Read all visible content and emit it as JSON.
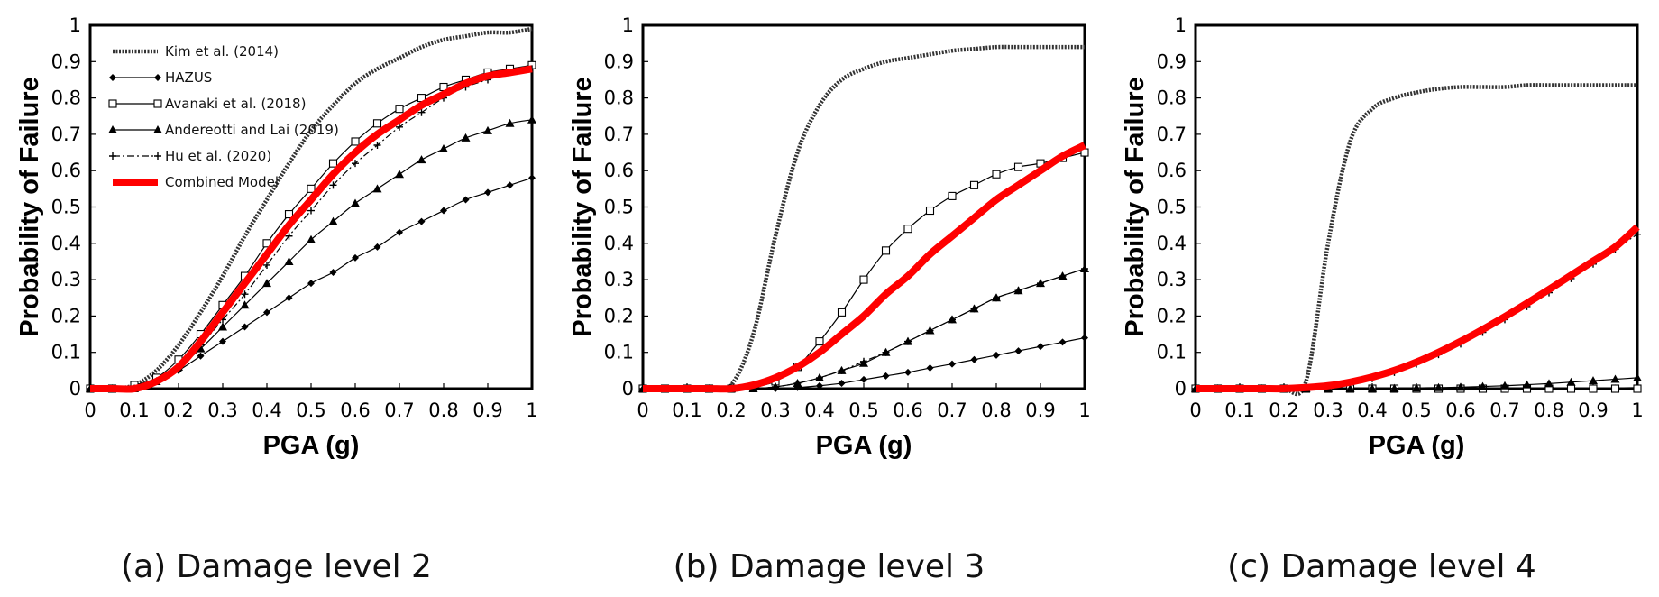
{
  "chart_data": [
    {
      "type": "line",
      "caption": "(a) Damage level 2",
      "xlabel": "PGA (g)",
      "ylabel": "Probability of Failure",
      "xlim": [
        0,
        1
      ],
      "ylim": [
        0,
        1
      ],
      "x_ticks": [
        "0",
        "0.1",
        "0.2",
        "0.3",
        "0.4",
        "0.5",
        "0.6",
        "0.7",
        "0.8",
        "0.9",
        "1"
      ],
      "y_ticks": [
        "0",
        "0.1",
        "0.2",
        "0.3",
        "0.4",
        "0.5",
        "0.6",
        "0.7",
        "0.8",
        "0.9",
        "1"
      ],
      "legend": "top-left",
      "grid": false,
      "series": [
        {
          "name": "Kim et al. (2014)",
          "x": [
            0,
            0.05,
            0.1,
            0.15,
            0.2,
            0.25,
            0.3,
            0.35,
            0.4,
            0.45,
            0.5,
            0.55,
            0.6,
            0.65,
            0.7,
            0.75,
            0.8,
            0.85,
            0.9,
            0.95,
            1.0
          ],
          "y": [
            0,
            0,
            0.01,
            0.05,
            0.12,
            0.21,
            0.31,
            0.42,
            0.52,
            0.62,
            0.71,
            0.78,
            0.84,
            0.88,
            0.91,
            0.94,
            0.96,
            0.97,
            0.98,
            0.98,
            0.99
          ]
        },
        {
          "name": "HAZUS",
          "x": [
            0,
            0.05,
            0.1,
            0.15,
            0.2,
            0.25,
            0.3,
            0.35,
            0.4,
            0.45,
            0.5,
            0.55,
            0.6,
            0.65,
            0.7,
            0.75,
            0.8,
            0.85,
            0.9,
            0.95,
            1.0
          ],
          "y": [
            0,
            0,
            0,
            0.02,
            0.05,
            0.09,
            0.13,
            0.17,
            0.21,
            0.25,
            0.29,
            0.32,
            0.36,
            0.39,
            0.43,
            0.46,
            0.49,
            0.52,
            0.54,
            0.56,
            0.58
          ]
        },
        {
          "name": "Avanaki et al. (2018)",
          "x": [
            0,
            0.05,
            0.1,
            0.15,
            0.2,
            0.25,
            0.3,
            0.35,
            0.4,
            0.45,
            0.5,
            0.55,
            0.6,
            0.65,
            0.7,
            0.75,
            0.8,
            0.85,
            0.9,
            0.95,
            1.0
          ],
          "y": [
            0,
            0,
            0.01,
            0.03,
            0.08,
            0.15,
            0.23,
            0.31,
            0.4,
            0.48,
            0.55,
            0.62,
            0.68,
            0.73,
            0.77,
            0.8,
            0.83,
            0.85,
            0.87,
            0.88,
            0.89
          ]
        },
        {
          "name": "Andereotti and Lai (2019)",
          "x": [
            0,
            0.05,
            0.1,
            0.15,
            0.2,
            0.25,
            0.3,
            0.35,
            0.4,
            0.45,
            0.5,
            0.55,
            0.6,
            0.65,
            0.7,
            0.75,
            0.8,
            0.85,
            0.9,
            0.95,
            1.0
          ],
          "y": [
            0,
            0,
            0,
            0.02,
            0.06,
            0.11,
            0.17,
            0.23,
            0.29,
            0.35,
            0.41,
            0.46,
            0.51,
            0.55,
            0.59,
            0.63,
            0.66,
            0.69,
            0.71,
            0.73,
            0.74
          ]
        },
        {
          "name": "Hu et al. (2020)",
          "x": [
            0,
            0.05,
            0.1,
            0.15,
            0.2,
            0.25,
            0.3,
            0.35,
            0.4,
            0.45,
            0.5,
            0.55,
            0.6,
            0.65,
            0.7,
            0.75,
            0.8,
            0.85,
            0.9,
            0.95,
            1.0
          ],
          "y": [
            0,
            0,
            0,
            0.02,
            0.06,
            0.12,
            0.19,
            0.26,
            0.34,
            0.42,
            0.49,
            0.56,
            0.62,
            0.67,
            0.72,
            0.76,
            0.8,
            0.83,
            0.85,
            0.87,
            0.88
          ]
        },
        {
          "name": "Combined Model",
          "x": [
            0,
            0.05,
            0.1,
            0.15,
            0.2,
            0.25,
            0.3,
            0.35,
            0.4,
            0.45,
            0.5,
            0.55,
            0.6,
            0.65,
            0.7,
            0.75,
            0.8,
            0.85,
            0.9,
            0.95,
            1.0
          ],
          "y": [
            0,
            0,
            0,
            0.02,
            0.06,
            0.13,
            0.21,
            0.29,
            0.37,
            0.45,
            0.52,
            0.59,
            0.65,
            0.7,
            0.74,
            0.78,
            0.81,
            0.84,
            0.86,
            0.87,
            0.88
          ]
        }
      ]
    },
    {
      "type": "line",
      "caption": "(b) Damage level 3",
      "xlabel": "PGA (g)",
      "ylabel": "Probability of Failure",
      "xlim": [
        0,
        1
      ],
      "ylim": [
        0,
        1
      ],
      "x_ticks": [
        "0",
        "0.1",
        "0.2",
        "0.3",
        "0.4",
        "0.5",
        "0.6",
        "0.7",
        "0.8",
        "0.9",
        "1"
      ],
      "y_ticks": [
        "0",
        "0.1",
        "0.2",
        "0.3",
        "0.4",
        "0.5",
        "0.6",
        "0.7",
        "0.8",
        "0.9",
        "1"
      ],
      "grid": false,
      "series": [
        {
          "name": "Kim et al. (2014)",
          "x": [
            0,
            0.05,
            0.1,
            0.15,
            0.2,
            0.25,
            0.3,
            0.35,
            0.4,
            0.45,
            0.5,
            0.55,
            0.6,
            0.65,
            0.7,
            0.75,
            0.8,
            0.85,
            0.9,
            0.95,
            1.0
          ],
          "y": [
            0,
            0,
            0,
            0,
            0.01,
            0.15,
            0.42,
            0.65,
            0.78,
            0.85,
            0.88,
            0.9,
            0.91,
            0.92,
            0.93,
            0.935,
            0.94,
            0.94,
            0.94,
            0.94,
            0.94
          ]
        },
        {
          "name": "HAZUS",
          "x": [
            0,
            0.05,
            0.1,
            0.15,
            0.2,
            0.25,
            0.3,
            0.35,
            0.4,
            0.45,
            0.5,
            0.55,
            0.6,
            0.65,
            0.7,
            0.75,
            0.8,
            0.85,
            0.9,
            0.95,
            1.0
          ],
          "y": [
            0,
            0,
            0,
            0,
            0,
            0,
            0,
            0.003,
            0.008,
            0.015,
            0.025,
            0.035,
            0.045,
            0.057,
            0.068,
            0.08,
            0.092,
            0.104,
            0.116,
            0.128,
            0.14
          ]
        },
        {
          "name": "Avanaki et al. (2018)",
          "x": [
            0,
            0.05,
            0.1,
            0.15,
            0.2,
            0.25,
            0.3,
            0.35,
            0.4,
            0.45,
            0.5,
            0.55,
            0.6,
            0.65,
            0.7,
            0.75,
            0.8,
            0.85,
            0.9,
            0.95,
            1.0
          ],
          "y": [
            0,
            0,
            0,
            0,
            0,
            0.005,
            0.02,
            0.06,
            0.13,
            0.21,
            0.3,
            0.38,
            0.44,
            0.49,
            0.53,
            0.56,
            0.59,
            0.61,
            0.62,
            0.635,
            0.65
          ]
        },
        {
          "name": "Andereotti and Lai (2019)",
          "x": [
            0,
            0.05,
            0.1,
            0.15,
            0.2,
            0.25,
            0.3,
            0.35,
            0.4,
            0.45,
            0.5,
            0.55,
            0.6,
            0.65,
            0.7,
            0.75,
            0.8,
            0.85,
            0.9,
            0.95,
            1.0
          ],
          "y": [
            0,
            0,
            0,
            0,
            0,
            0,
            0.005,
            0.015,
            0.03,
            0.05,
            0.07,
            0.1,
            0.13,
            0.16,
            0.19,
            0.22,
            0.25,
            0.27,
            0.29,
            0.31,
            0.33
          ]
        },
        {
          "name": "Hu et al. (2020)",
          "x": [
            0,
            0.05,
            0.1,
            0.15,
            0.2,
            0.25,
            0.3,
            0.35,
            0.4,
            0.45,
            0.5,
            0.55,
            0.6,
            0.65,
            0.7,
            0.75,
            0.8,
            0.85,
            0.9,
            0.95,
            1.0
          ],
          "y": [
            0,
            0,
            0,
            0,
            0,
            0,
            0.005,
            0.015,
            0.03,
            0.05,
            0.075,
            0.1,
            0.13,
            0.16,
            0.19,
            0.22,
            0.25,
            0.27,
            0.29,
            0.31,
            0.33
          ]
        },
        {
          "name": "Combined Model",
          "x": [
            0,
            0.05,
            0.1,
            0.15,
            0.2,
            0.25,
            0.3,
            0.35,
            0.4,
            0.45,
            0.5,
            0.55,
            0.6,
            0.65,
            0.7,
            0.75,
            0.8,
            0.85,
            0.9,
            0.95,
            1.0
          ],
          "y": [
            0,
            0,
            0,
            0,
            0,
            0.01,
            0.03,
            0.06,
            0.1,
            0.15,
            0.2,
            0.26,
            0.31,
            0.37,
            0.42,
            0.47,
            0.52,
            0.56,
            0.6,
            0.64,
            0.67
          ]
        }
      ]
    },
    {
      "type": "line",
      "caption": "(c) Damage level 4",
      "xlabel": "PGA (g)",
      "ylabel": "Probability of Failure",
      "xlim": [
        0,
        1
      ],
      "ylim": [
        0,
        1
      ],
      "x_ticks": [
        "0",
        "0.1",
        "0.2",
        "0.3",
        "0.4",
        "0.5",
        "0.6",
        "0.7",
        "0.8",
        "0.9",
        "1"
      ],
      "y_ticks": [
        "0",
        "0.1",
        "0.2",
        "0.3",
        "0.4",
        "0.5",
        "0.6",
        "0.7",
        "0.8",
        "0.9",
        "1"
      ],
      "grid": false,
      "series": [
        {
          "name": "Kim et al. (2014)",
          "x": [
            0,
            0.05,
            0.1,
            0.15,
            0.2,
            0.25,
            0.3,
            0.35,
            0.4,
            0.45,
            0.5,
            0.55,
            0.6,
            0.65,
            0.7,
            0.75,
            0.8,
            0.85,
            0.9,
            0.95,
            1.0
          ],
          "y": [
            0,
            0,
            0,
            0,
            0,
            0.02,
            0.4,
            0.68,
            0.77,
            0.8,
            0.815,
            0.825,
            0.83,
            0.83,
            0.83,
            0.835,
            0.835,
            0.835,
            0.835,
            0.835,
            0.835
          ]
        },
        {
          "name": "HAZUS",
          "x": [
            0,
            0.05,
            0.1,
            0.15,
            0.2,
            0.25,
            0.3,
            0.35,
            0.4,
            0.45,
            0.5,
            0.55,
            0.6,
            0.65,
            0.7,
            0.75,
            0.8,
            0.85,
            0.9,
            0.95,
            1.0
          ],
          "y": [
            0,
            0,
            0,
            0,
            0,
            0,
            0,
            0,
            0,
            0,
            0,
            0,
            0,
            0,
            0.001,
            0.001,
            0.001,
            0.002,
            0.002,
            0.002,
            0.003
          ]
        },
        {
          "name": "Avanaki et al. (2018)",
          "x": [
            0,
            0.05,
            0.1,
            0.15,
            0.2,
            0.25,
            0.3,
            0.35,
            0.4,
            0.45,
            0.5,
            0.55,
            0.6,
            0.65,
            0.7,
            0.75,
            0.8,
            0.85,
            0.9,
            0.95,
            1.0
          ],
          "y": [
            0,
            0,
            0,
            0,
            0,
            0,
            0,
            0,
            0,
            0,
            0,
            0,
            0,
            0,
            0,
            0,
            0,
            0,
            0,
            0,
            0
          ]
        },
        {
          "name": "Andereotti and Lai (2019)",
          "x": [
            0,
            0.05,
            0.1,
            0.15,
            0.2,
            0.25,
            0.3,
            0.35,
            0.4,
            0.45,
            0.5,
            0.55,
            0.6,
            0.65,
            0.7,
            0.75,
            0.8,
            0.85,
            0.9,
            0.95,
            1.0
          ],
          "y": [
            0,
            0,
            0,
            0,
            0,
            0,
            0,
            0,
            0,
            0.001,
            0.002,
            0.003,
            0.004,
            0.006,
            0.008,
            0.011,
            0.014,
            0.018,
            0.022,
            0.026,
            0.03
          ]
        },
        {
          "name": "Hu et al. (2020)",
          "x": [
            0,
            0.05,
            0.1,
            0.15,
            0.2,
            0.25,
            0.3,
            0.35,
            0.4,
            0.45,
            0.5,
            0.55,
            0.6,
            0.65,
            0.7,
            0.75,
            0.8,
            0.85,
            0.9,
            0.95,
            1.0
          ],
          "y": [
            0,
            0,
            0,
            0,
            0,
            0.002,
            0.006,
            0.015,
            0.028,
            0.045,
            0.068,
            0.094,
            0.123,
            0.155,
            0.19,
            0.226,
            0.264,
            0.303,
            0.343,
            0.384,
            0.425
          ]
        },
        {
          "name": "Combined Model",
          "x": [
            0,
            0.05,
            0.1,
            0.15,
            0.2,
            0.25,
            0.3,
            0.35,
            0.4,
            0.45,
            0.5,
            0.55,
            0.6,
            0.65,
            0.7,
            0.75,
            0.8,
            0.85,
            0.9,
            0.95,
            1.0
          ],
          "y": [
            0,
            0,
            0,
            0,
            0,
            0.003,
            0.008,
            0.018,
            0.032,
            0.05,
            0.073,
            0.1,
            0.13,
            0.163,
            0.198,
            0.235,
            0.273,
            0.312,
            0.351,
            0.39,
            0.445
          ]
        }
      ]
    }
  ]
}
